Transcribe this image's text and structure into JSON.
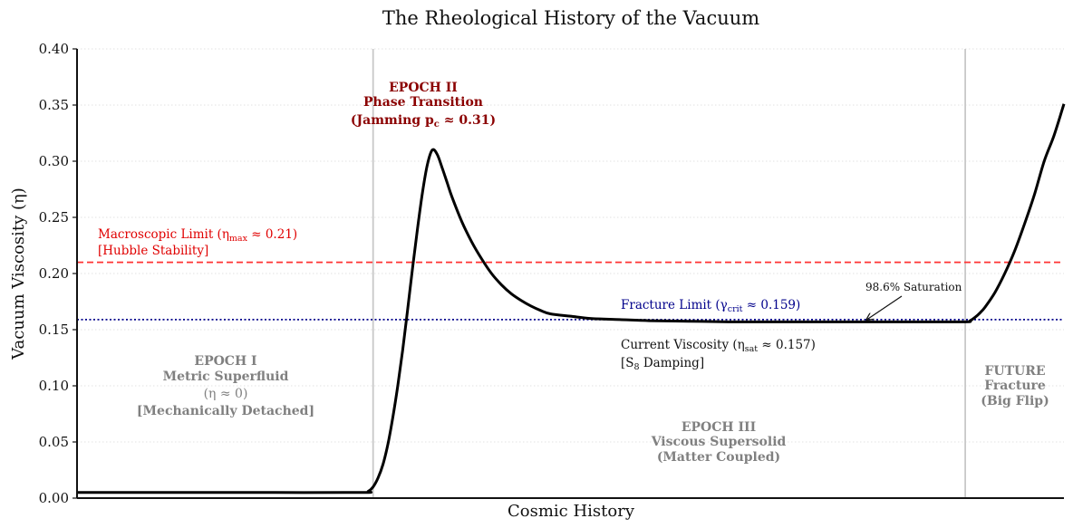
{
  "chart_data": {
    "type": "line",
    "title": "The Rheological History of the Vacuum",
    "xlabel": "Cosmic History",
    "ylabel": "Vacuum Viscosity (η)",
    "ylim": [
      0,
      0.4
    ],
    "xlim": [
      0,
      100
    ],
    "yticks": [
      "0.00",
      "0.05",
      "0.10",
      "0.15",
      "0.20",
      "0.25",
      "0.30",
      "0.35",
      "0.40"
    ],
    "ytick_values": [
      0,
      0.05,
      0.1,
      0.15,
      0.2,
      0.25,
      0.3,
      0.35,
      0.4
    ],
    "grid": "horizontal dotted",
    "series": [
      {
        "color": "#000000",
        "x": [
          0,
          10,
          20,
          29,
          29.5,
          30,
          30.5,
          31,
          31.5,
          32,
          32.5,
          33,
          33.5,
          34,
          34.5,
          35,
          35.5,
          36,
          36.5,
          37,
          37.5,
          38,
          39,
          40,
          41,
          42,
          43,
          44,
          45,
          46,
          47,
          48,
          50,
          52,
          55,
          58,
          62,
          66,
          70,
          75,
          80,
          85,
          90,
          90.5,
          91,
          91.5,
          92,
          93,
          94,
          95,
          96,
          97,
          98,
          99,
          100
        ],
        "y": [
          0.005,
          0.005,
          0.005,
          0.005,
          0.006,
          0.01,
          0.018,
          0.03,
          0.048,
          0.072,
          0.1,
          0.132,
          0.168,
          0.205,
          0.24,
          0.272,
          0.297,
          0.31,
          0.306,
          0.294,
          0.281,
          0.268,
          0.246,
          0.228,
          0.213,
          0.2,
          0.19,
          0.182,
          0.176,
          0.171,
          0.167,
          0.164,
          0.162,
          0.16,
          0.159,
          0.158,
          0.1575,
          0.157,
          0.157,
          0.157,
          0.157,
          0.157,
          0.157,
          0.158,
          0.161,
          0.165,
          0.17,
          0.183,
          0.2,
          0.22,
          0.244,
          0.27,
          0.3,
          0.323,
          0.351
        ]
      }
    ],
    "reference_lines": [
      {
        "y": 0.21,
        "color": "#ff3333",
        "style": "dashed"
      },
      {
        "y": 0.159,
        "color": "#00008b",
        "style": "dotted"
      }
    ],
    "vertical_lines": [
      {
        "x": 30,
        "color": "#c8c8c8"
      },
      {
        "x": 90,
        "color": "#c8c8c8"
      }
    ],
    "annotations": {
      "epoch1": {
        "line1": "EPOCH I",
        "line2": "Metric Superfluid",
        "line3": "(η ≈ 0)",
        "line4": "[Mechanically Detached]"
      },
      "epoch2": {
        "line1": "EPOCH II",
        "line2": "Phase Transition",
        "line3": "(Jamming p",
        "line3_sub": "c",
        "line3_end": " ≈ 0.31)"
      },
      "epoch3": {
        "line1": "EPOCH III",
        "line2": "Viscous Supersolid",
        "line3": "(Matter Coupled)"
      },
      "future": {
        "line1": "FUTURE",
        "line2": "Fracture",
        "line3": "(Big Flip)"
      },
      "macro": {
        "line1": "Macroscopic Limit (η",
        "line1_sub": "max",
        "line1_end": " ≈ 0.21)",
        "line2": "[Hubble Stability]"
      },
      "fracture": {
        "text": "Fracture Limit (γ",
        "sub": "crit",
        "end": " ≈ 0.159)"
      },
      "current": {
        "line1": "Current Viscosity (η",
        "line1_sub": "sat",
        "line1_end": " ≈ 0.157)",
        "line2_start": "[S",
        "line2_sub": "8",
        "line2_end": " Damping]"
      },
      "saturation": {
        "text": "98.6% Saturation",
        "target_x": 80,
        "target_y": 0.158
      }
    }
  }
}
